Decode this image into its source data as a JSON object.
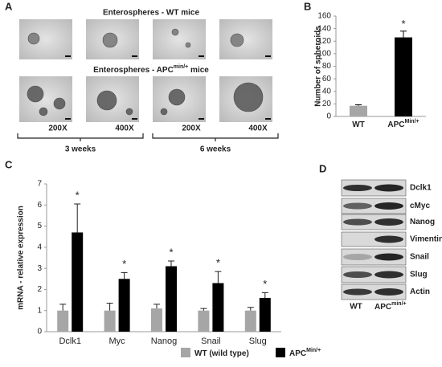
{
  "panel_a": {
    "label": "A",
    "title_wt": "Enterospheres - WT mice",
    "title_apc": "Enterospheres - APC",
    "title_apc_sup": "min/+",
    "title_apc_suffix": " mice",
    "magnifications": [
      "200X",
      "400X",
      "200X",
      "400X"
    ],
    "timepoints": [
      "3 weeks",
      "6 weeks"
    ]
  },
  "chart_data": [
    {
      "type": "bar",
      "panel_label": "B",
      "y_label": "Number of spheroids",
      "categories": [
        "WT",
        "APC"
      ],
      "category_superscripts": [
        null,
        "Min/+"
      ],
      "values": [
        17,
        126
      ],
      "errors": [
        1.5,
        10
      ],
      "colors": [
        "#a6a6a6",
        "#000000"
      ],
      "significance": [
        null,
        "*"
      ],
      "ylim": [
        0,
        160
      ],
      "yticks": [
        0,
        20,
        40,
        60,
        80,
        100,
        120,
        140,
        160
      ]
    },
    {
      "type": "grouped-bar",
      "panel_label": "C",
      "y_label": "mRNA - relative expression",
      "categories": [
        "Dclk1",
        "Myc",
        "Nanog",
        "Snail",
        "Slug"
      ],
      "series": [
        {
          "name": "WT (wild type)",
          "color": "#a6a6a6",
          "values": [
            1,
            1,
            1.1,
            1,
            1
          ],
          "errors": [
            0.3,
            0.35,
            0.2,
            0.1,
            0.15
          ]
        },
        {
          "name": "APC",
          "name_superscript": "Min/+",
          "color": "#000000",
          "values": [
            4.7,
            2.5,
            3.1,
            2.3,
            1.6
          ],
          "errors": [
            1.35,
            0.3,
            0.25,
            0.55,
            0.25
          ]
        }
      ],
      "significance": [
        "*",
        "*",
        "*",
        "*",
        "*"
      ],
      "ylim": [
        0,
        7
      ],
      "yticks": [
        0,
        1,
        2,
        3,
        4,
        5,
        6,
        7
      ],
      "legend": "bottom"
    }
  ],
  "panel_d": {
    "label": "D",
    "proteins": [
      "Dclk1",
      "cMyc",
      "Nanog",
      "Vimentin",
      "Snail",
      "Slug",
      "Actin"
    ],
    "lane_wt": "WT",
    "lane_apc": "APC",
    "lane_apc_sup": "min/+"
  }
}
